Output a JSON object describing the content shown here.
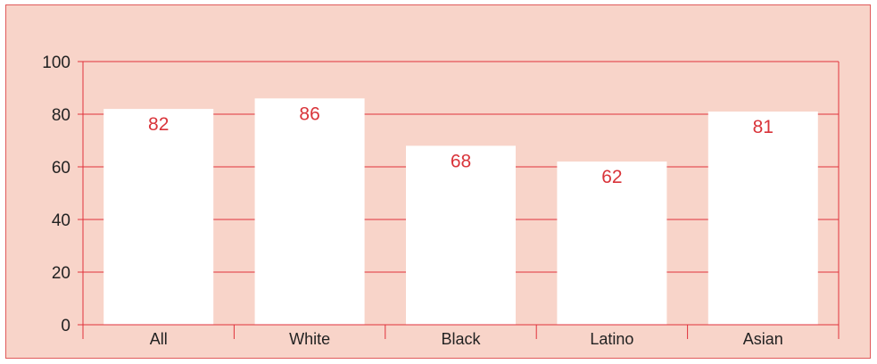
{
  "chart_data": {
    "type": "bar",
    "categories": [
      "All",
      "White",
      "Black",
      "Latino",
      "Asian"
    ],
    "values": [
      82,
      86,
      68,
      62,
      81
    ],
    "ylim": [
      0,
      100
    ],
    "yticks": [
      0,
      20,
      40,
      60,
      80,
      100
    ],
    "grid": true,
    "legend": "none",
    "colors": {
      "background": "#f8d4c9",
      "bar": "#ffffff",
      "grid": "#e0323c",
      "data_label": "#d9343a",
      "text": "#222222"
    }
  }
}
